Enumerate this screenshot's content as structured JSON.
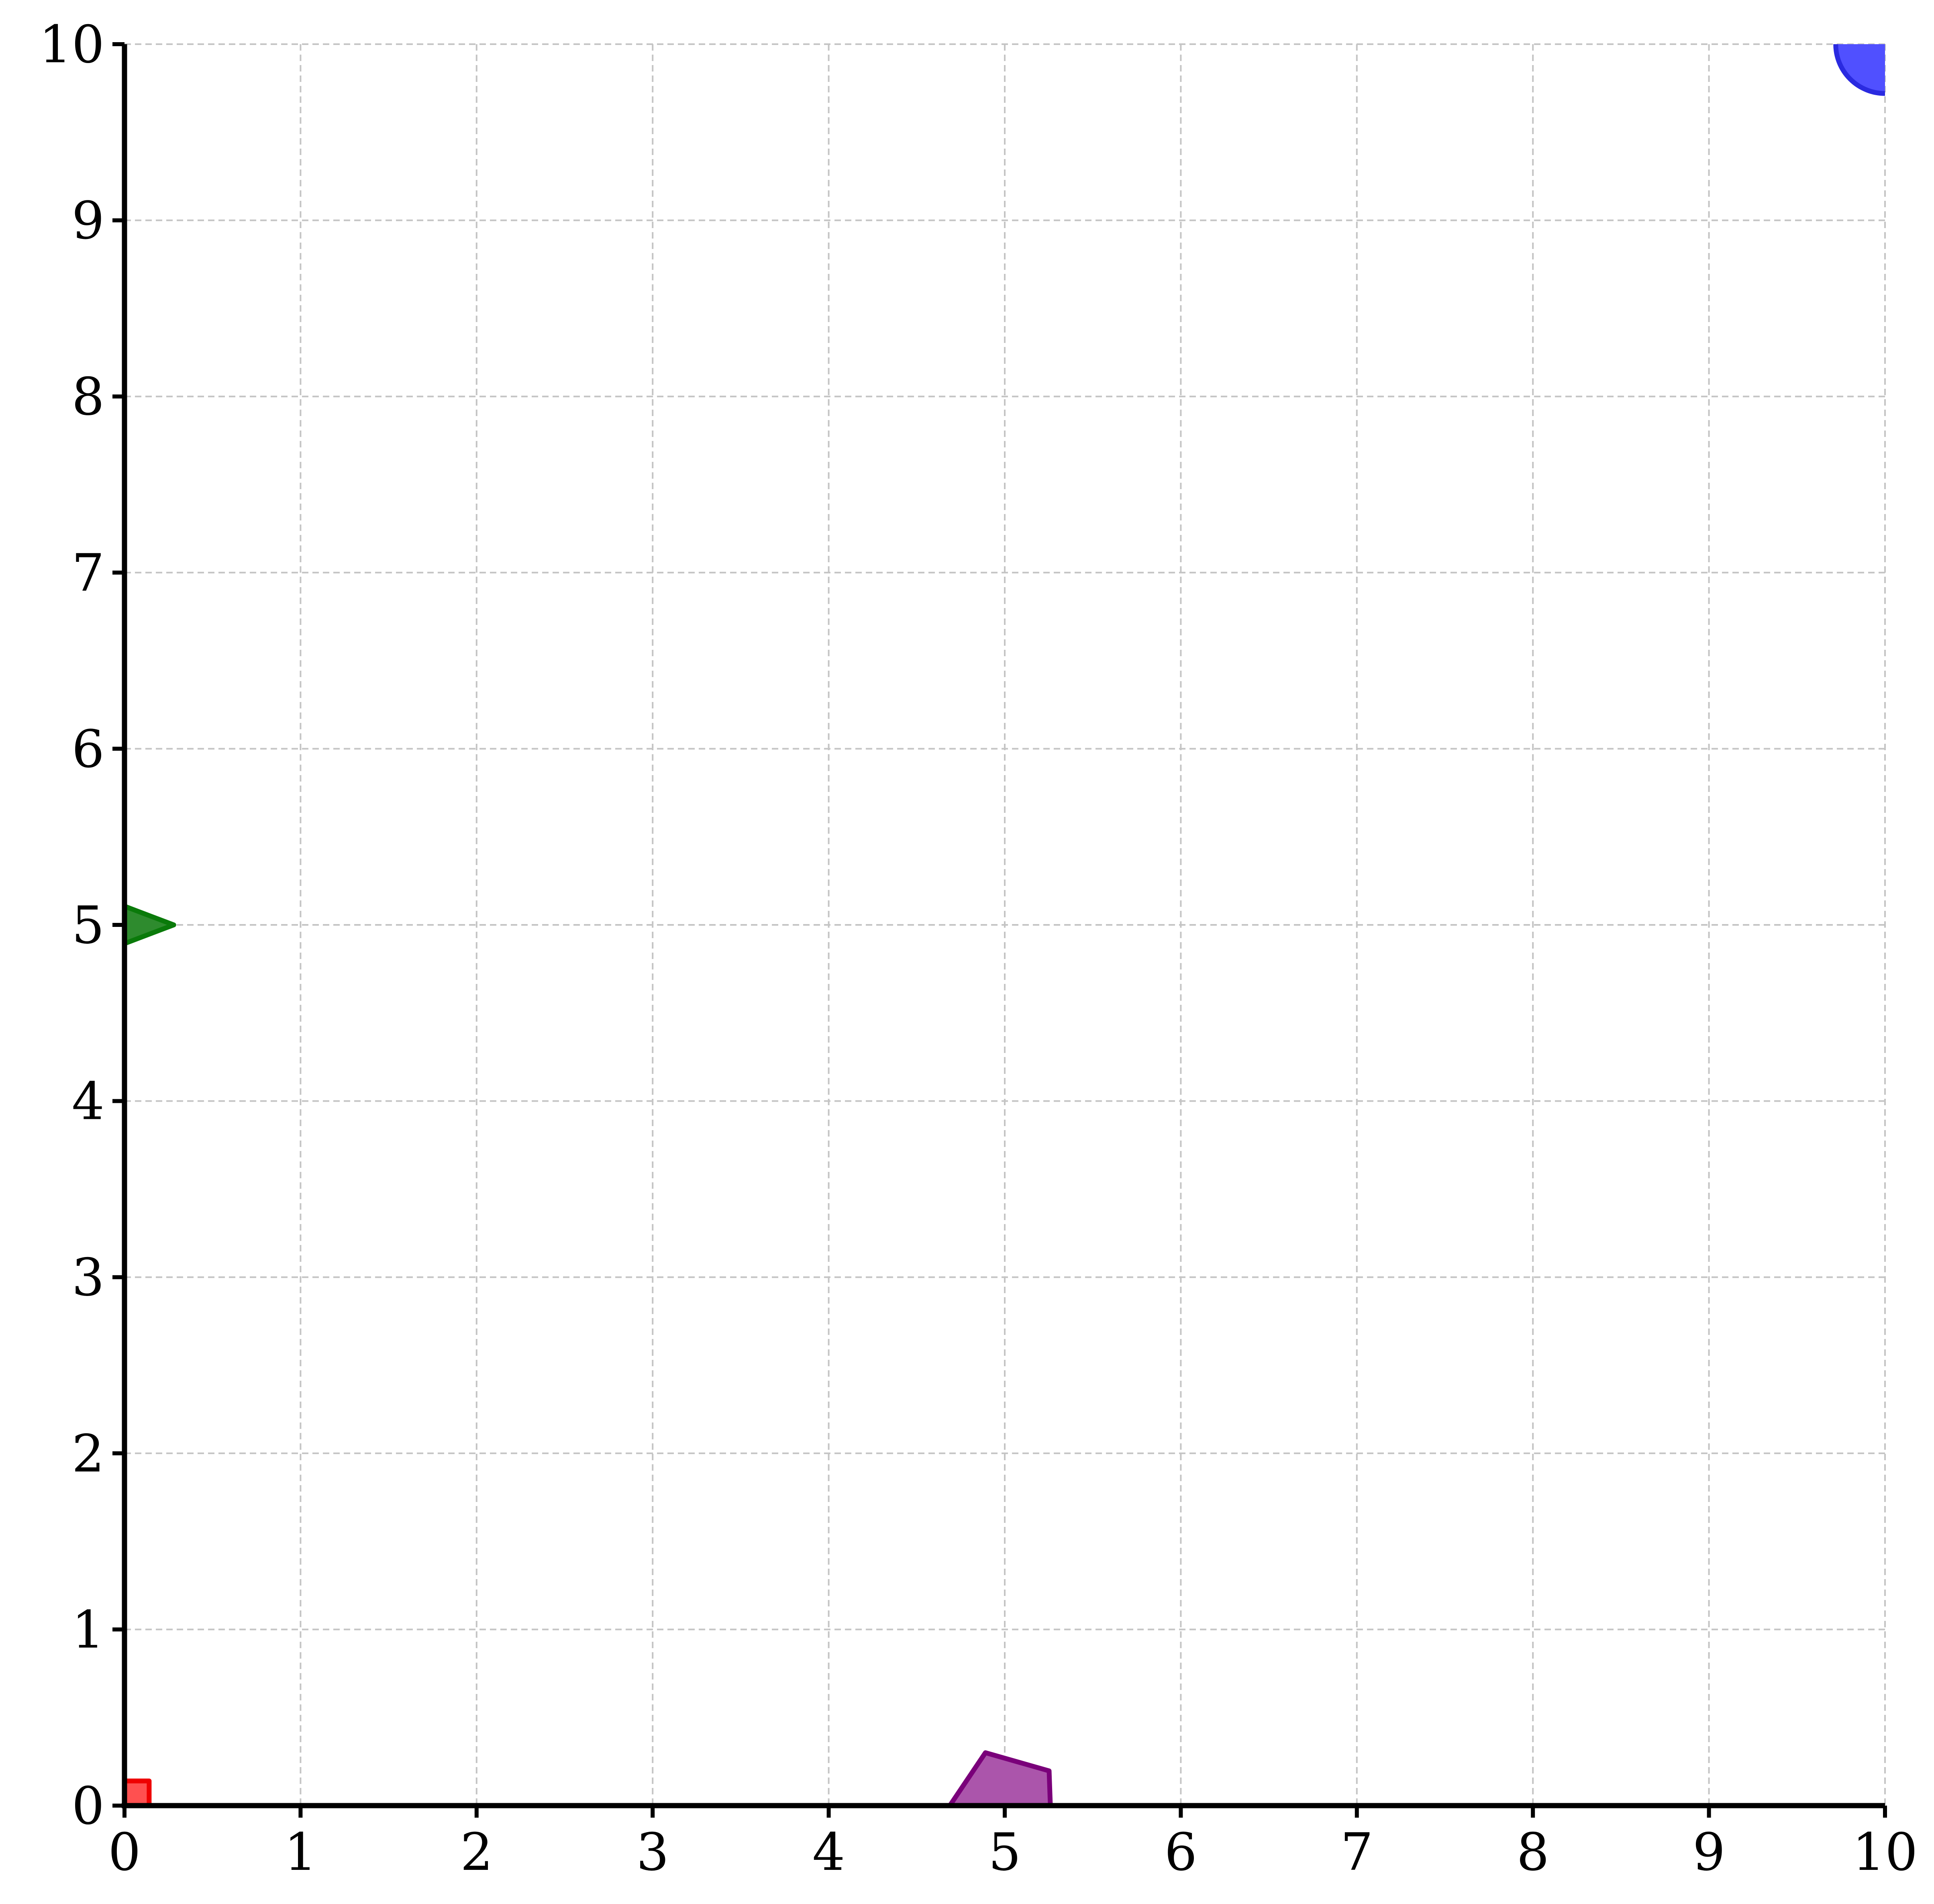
{
  "chart_data": {
    "type": "scatter",
    "title": "",
    "xlabel": "",
    "ylabel": "",
    "xlim": [
      0,
      10
    ],
    "ylim": [
      0,
      10
    ],
    "x_ticks": [
      "0",
      "1",
      "2",
      "3",
      "4",
      "5",
      "6",
      "7",
      "8",
      "9",
      "10"
    ],
    "y_ticks": [
      "0",
      "1",
      "2",
      "3",
      "4",
      "5",
      "6",
      "7",
      "8",
      "9",
      "10"
    ],
    "grid": true,
    "grid_style": "dashed",
    "markers": [
      {
        "shape": "square",
        "x": 0,
        "y": 0,
        "fill": "#ff5050",
        "stroke": "#ee0000"
      },
      {
        "shape": "triangle-right",
        "x": 0,
        "y": 5,
        "fill": "#2e8b2e",
        "stroke": "#0a7a0a"
      },
      {
        "shape": "circle",
        "x": 10,
        "y": 10,
        "fill": "#5050ff",
        "stroke": "#2a2ae0"
      },
      {
        "shape": "pentagon",
        "x": 5,
        "y": 0,
        "fill": "#ab55ab",
        "stroke": "#7a007a"
      }
    ]
  }
}
